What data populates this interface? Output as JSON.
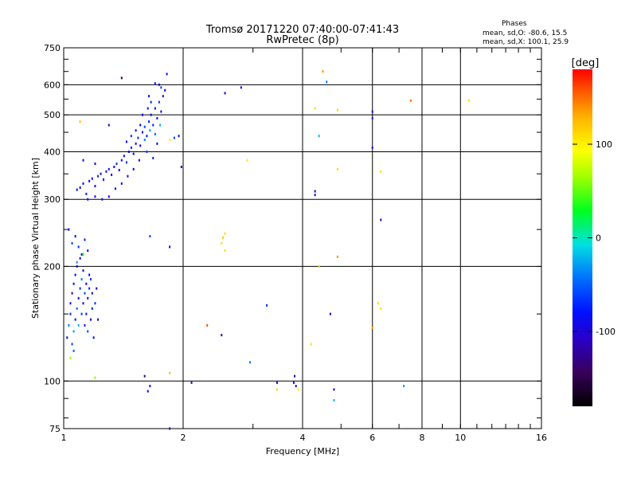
{
  "chart_data": {
    "type": "scatter",
    "title": "Tromsø 20171220 07:40:00-07:41:43",
    "subtitle": "RwPretec (8p)",
    "annotation": {
      "heading": "Phases",
      "line1": "mean, sd,O: -80.6, 15.5",
      "line2": "mean, sd,X: 100.1, 25.9"
    },
    "xlabel": "Frequency [MHz]",
    "ylabel": "Stationary phase Virtual Height [km]",
    "x_scale": "log2",
    "y_scale": "log",
    "xlim": [
      1,
      16
    ],
    "ylim": [
      75,
      750
    ],
    "x_ticks": [
      1,
      2,
      4,
      6,
      8,
      10,
      16
    ],
    "y_ticks": [
      75,
      100,
      200,
      300,
      400,
      500,
      600,
      750
    ],
    "colorbar": {
      "label": "[deg]",
      "range": [
        -180,
        180
      ],
      "ticks": [
        100,
        0,
        -100
      ]
    },
    "grid": true,
    "points_x_y_phase": [
      [
        1.02,
        130,
        -85
      ],
      [
        1.03,
        140,
        -40
      ],
      [
        1.04,
        150,
        -70
      ],
      [
        1.04,
        160,
        -90
      ],
      [
        1.05,
        125,
        -60
      ],
      [
        1.05,
        170,
        -95
      ],
      [
        1.06,
        135,
        -30
      ],
      [
        1.06,
        180,
        -80
      ],
      [
        1.07,
        145,
        -100
      ],
      [
        1.07,
        190,
        -75
      ],
      [
        1.08,
        155,
        -50
      ],
      [
        1.08,
        200,
        -90
      ],
      [
        1.09,
        140,
        -20
      ],
      [
        1.09,
        165,
        -85
      ],
      [
        1.1,
        175,
        -70
      ],
      [
        1.1,
        210,
        -95
      ],
      [
        1.11,
        150,
        -65
      ],
      [
        1.11,
        185,
        -40
      ],
      [
        1.12,
        160,
        -90
      ],
      [
        1.12,
        195,
        -80
      ],
      [
        1.13,
        140,
        -75
      ],
      [
        1.13,
        170,
        -60
      ],
      [
        1.14,
        180,
        -95
      ],
      [
        1.14,
        150,
        -85
      ],
      [
        1.15,
        135,
        -55
      ],
      [
        1.15,
        165,
        -90
      ],
      [
        1.16,
        175,
        -70
      ],
      [
        1.16,
        190,
        -80
      ],
      [
        1.17,
        145,
        -100
      ],
      [
        1.17,
        185,
        -65
      ],
      [
        1.18,
        155,
        -75
      ],
      [
        1.18,
        170,
        -90
      ],
      [
        1.19,
        130,
        -85
      ],
      [
        1.2,
        160,
        -70
      ],
      [
        1.21,
        175,
        -95
      ],
      [
        1.22,
        145,
        -80
      ],
      [
        1.05,
        230,
        -60
      ],
      [
        1.07,
        240,
        -85
      ],
      [
        1.09,
        225,
        -70
      ],
      [
        1.11,
        215,
        -90
      ],
      [
        1.13,
        235,
        -75
      ],
      [
        1.15,
        220,
        -80
      ],
      [
        1.03,
        250,
        -100
      ],
      [
        1.08,
        205,
        -30
      ],
      [
        1.06,
        120,
        -50
      ],
      [
        1.04,
        115,
        60
      ],
      [
        1.12,
        215,
        40
      ],
      [
        1.08,
        318,
        -80
      ],
      [
        1.1,
        322,
        -90
      ],
      [
        1.12,
        330,
        -85
      ],
      [
        1.14,
        310,
        -75
      ],
      [
        1.16,
        335,
        -95
      ],
      [
        1.18,
        340,
        -80
      ],
      [
        1.2,
        325,
        -90
      ],
      [
        1.22,
        345,
        -70
      ],
      [
        1.24,
        350,
        -85
      ],
      [
        1.26,
        338,
        -95
      ],
      [
        1.28,
        355,
        -80
      ],
      [
        1.3,
        360,
        -75
      ],
      [
        1.32,
        348,
        -90
      ],
      [
        1.34,
        365,
        -85
      ],
      [
        1.36,
        372,
        -70
      ],
      [
        1.38,
        358,
        -95
      ],
      [
        1.4,
        380,
        -80
      ],
      [
        1.42,
        390,
        -90
      ],
      [
        1.44,
        375,
        -65
      ],
      [
        1.46,
        400,
        -85
      ],
      [
        1.48,
        410,
        -75
      ],
      [
        1.5,
        395,
        -90
      ],
      [
        1.52,
        420,
        -80
      ],
      [
        1.54,
        435,
        -70
      ],
      [
        1.56,
        415,
        -95
      ],
      [
        1.58,
        450,
        -85
      ],
      [
        1.6,
        465,
        -60
      ],
      [
        1.62,
        440,
        -90
      ],
      [
        1.64,
        480,
        -75
      ],
      [
        1.66,
        500,
        -85
      ],
      [
        1.68,
        470,
        -70
      ],
      [
        1.7,
        520,
        -90
      ],
      [
        1.72,
        490,
        -80
      ],
      [
        1.74,
        540,
        -65
      ],
      [
        1.76,
        510,
        -95
      ],
      [
        1.78,
        560,
        -85
      ],
      [
        1.6,
        430,
        -40
      ],
      [
        1.65,
        455,
        -30
      ],
      [
        1.7,
        445,
        -50
      ],
      [
        1.75,
        470,
        -20
      ],
      [
        1.62,
        400,
        -60
      ],
      [
        1.68,
        385,
        -75
      ],
      [
        1.72,
        420,
        -85
      ],
      [
        1.55,
        380,
        -90
      ],
      [
        1.5,
        360,
        -80
      ],
      [
        1.45,
        345,
        -95
      ],
      [
        1.4,
        330,
        -85
      ],
      [
        1.35,
        320,
        -90
      ],
      [
        1.3,
        305,
        -80
      ],
      [
        1.25,
        300,
        -75
      ],
      [
        1.2,
        305,
        -85
      ],
      [
        1.15,
        300,
        -90
      ],
      [
        1.66,
        540,
        -70
      ],
      [
        1.8,
        580,
        -90
      ],
      [
        1.58,
        500,
        -80
      ],
      [
        1.63,
        520,
        -75
      ],
      [
        1.56,
        470,
        -85
      ],
      [
        1.52,
        455,
        -90
      ],
      [
        1.48,
        440,
        -70
      ],
      [
        1.44,
        425,
        -80
      ],
      [
        1.76,
        590,
        -60
      ],
      [
        1.74,
        600,
        -85
      ],
      [
        1.82,
        640,
        -95
      ],
      [
        1.7,
        605,
        -70
      ],
      [
        1.64,
        560,
        -80
      ],
      [
        1.1,
        480,
        120
      ],
      [
        1.3,
        470,
        -110
      ],
      [
        1.12,
        380,
        -90
      ],
      [
        1.2,
        372,
        -100
      ],
      [
        1.4,
        625,
        -150
      ],
      [
        1.9,
        435,
        -60
      ],
      [
        1.85,
        430,
        100
      ],
      [
        1.95,
        440,
        -80
      ],
      [
        1.98,
        365,
        -100
      ],
      [
        1.85,
        225,
        -90
      ],
      [
        1.6,
        103,
        -120
      ],
      [
        1.65,
        97,
        -100
      ],
      [
        1.63,
        94,
        -90
      ],
      [
        1.2,
        102,
        60
      ],
      [
        1.85,
        105,
        120
      ],
      [
        1.85,
        75,
        -95
      ],
      [
        1.65,
        240,
        -60
      ],
      [
        2.1,
        99,
        -110
      ],
      [
        2.3,
        140,
        160
      ],
      [
        2.5,
        230,
        110
      ],
      [
        2.55,
        244,
        110
      ],
      [
        2.52,
        238,
        120
      ],
      [
        2.55,
        220,
        110
      ],
      [
        2.5,
        132,
        -110
      ],
      [
        2.55,
        570,
        -95
      ],
      [
        2.8,
        590,
        -90
      ],
      [
        2.9,
        380,
        105
      ],
      [
        2.95,
        112,
        -40
      ],
      [
        3.25,
        158,
        -70
      ],
      [
        3.45,
        95,
        110
      ],
      [
        3.45,
        99,
        -110
      ],
      [
        3.8,
        99,
        -100
      ],
      [
        3.82,
        103,
        -115
      ],
      [
        3.85,
        97,
        -90
      ],
      [
        3.9,
        95,
        100
      ],
      [
        4.2,
        125,
        110
      ],
      [
        4.3,
        520,
        110
      ],
      [
        4.3,
        308,
        -110
      ],
      [
        4.3,
        315,
        -100
      ],
      [
        4.4,
        440,
        -20
      ],
      [
        4.4,
        200,
        110
      ],
      [
        4.5,
        650,
        140
      ],
      [
        4.6,
        610,
        -40
      ],
      [
        4.7,
        150,
        -110
      ],
      [
        4.8,
        95,
        -110
      ],
      [
        4.8,
        89,
        -20
      ],
      [
        4.9,
        515,
        110
      ],
      [
        4.9,
        360,
        110
      ],
      [
        4.9,
        212,
        140
      ],
      [
        6.0,
        510,
        -100
      ],
      [
        6.0,
        490,
        -105
      ],
      [
        6.0,
        410,
        -110
      ],
      [
        6.0,
        138,
        140
      ],
      [
        6.2,
        160,
        110
      ],
      [
        6.3,
        155,
        110
      ],
      [
        6.3,
        355,
        110
      ],
      [
        6.3,
        265,
        -110
      ],
      [
        7.2,
        97,
        -30
      ],
      [
        7.5,
        545,
        150
      ],
      [
        10.5,
        545,
        110
      ]
    ]
  }
}
